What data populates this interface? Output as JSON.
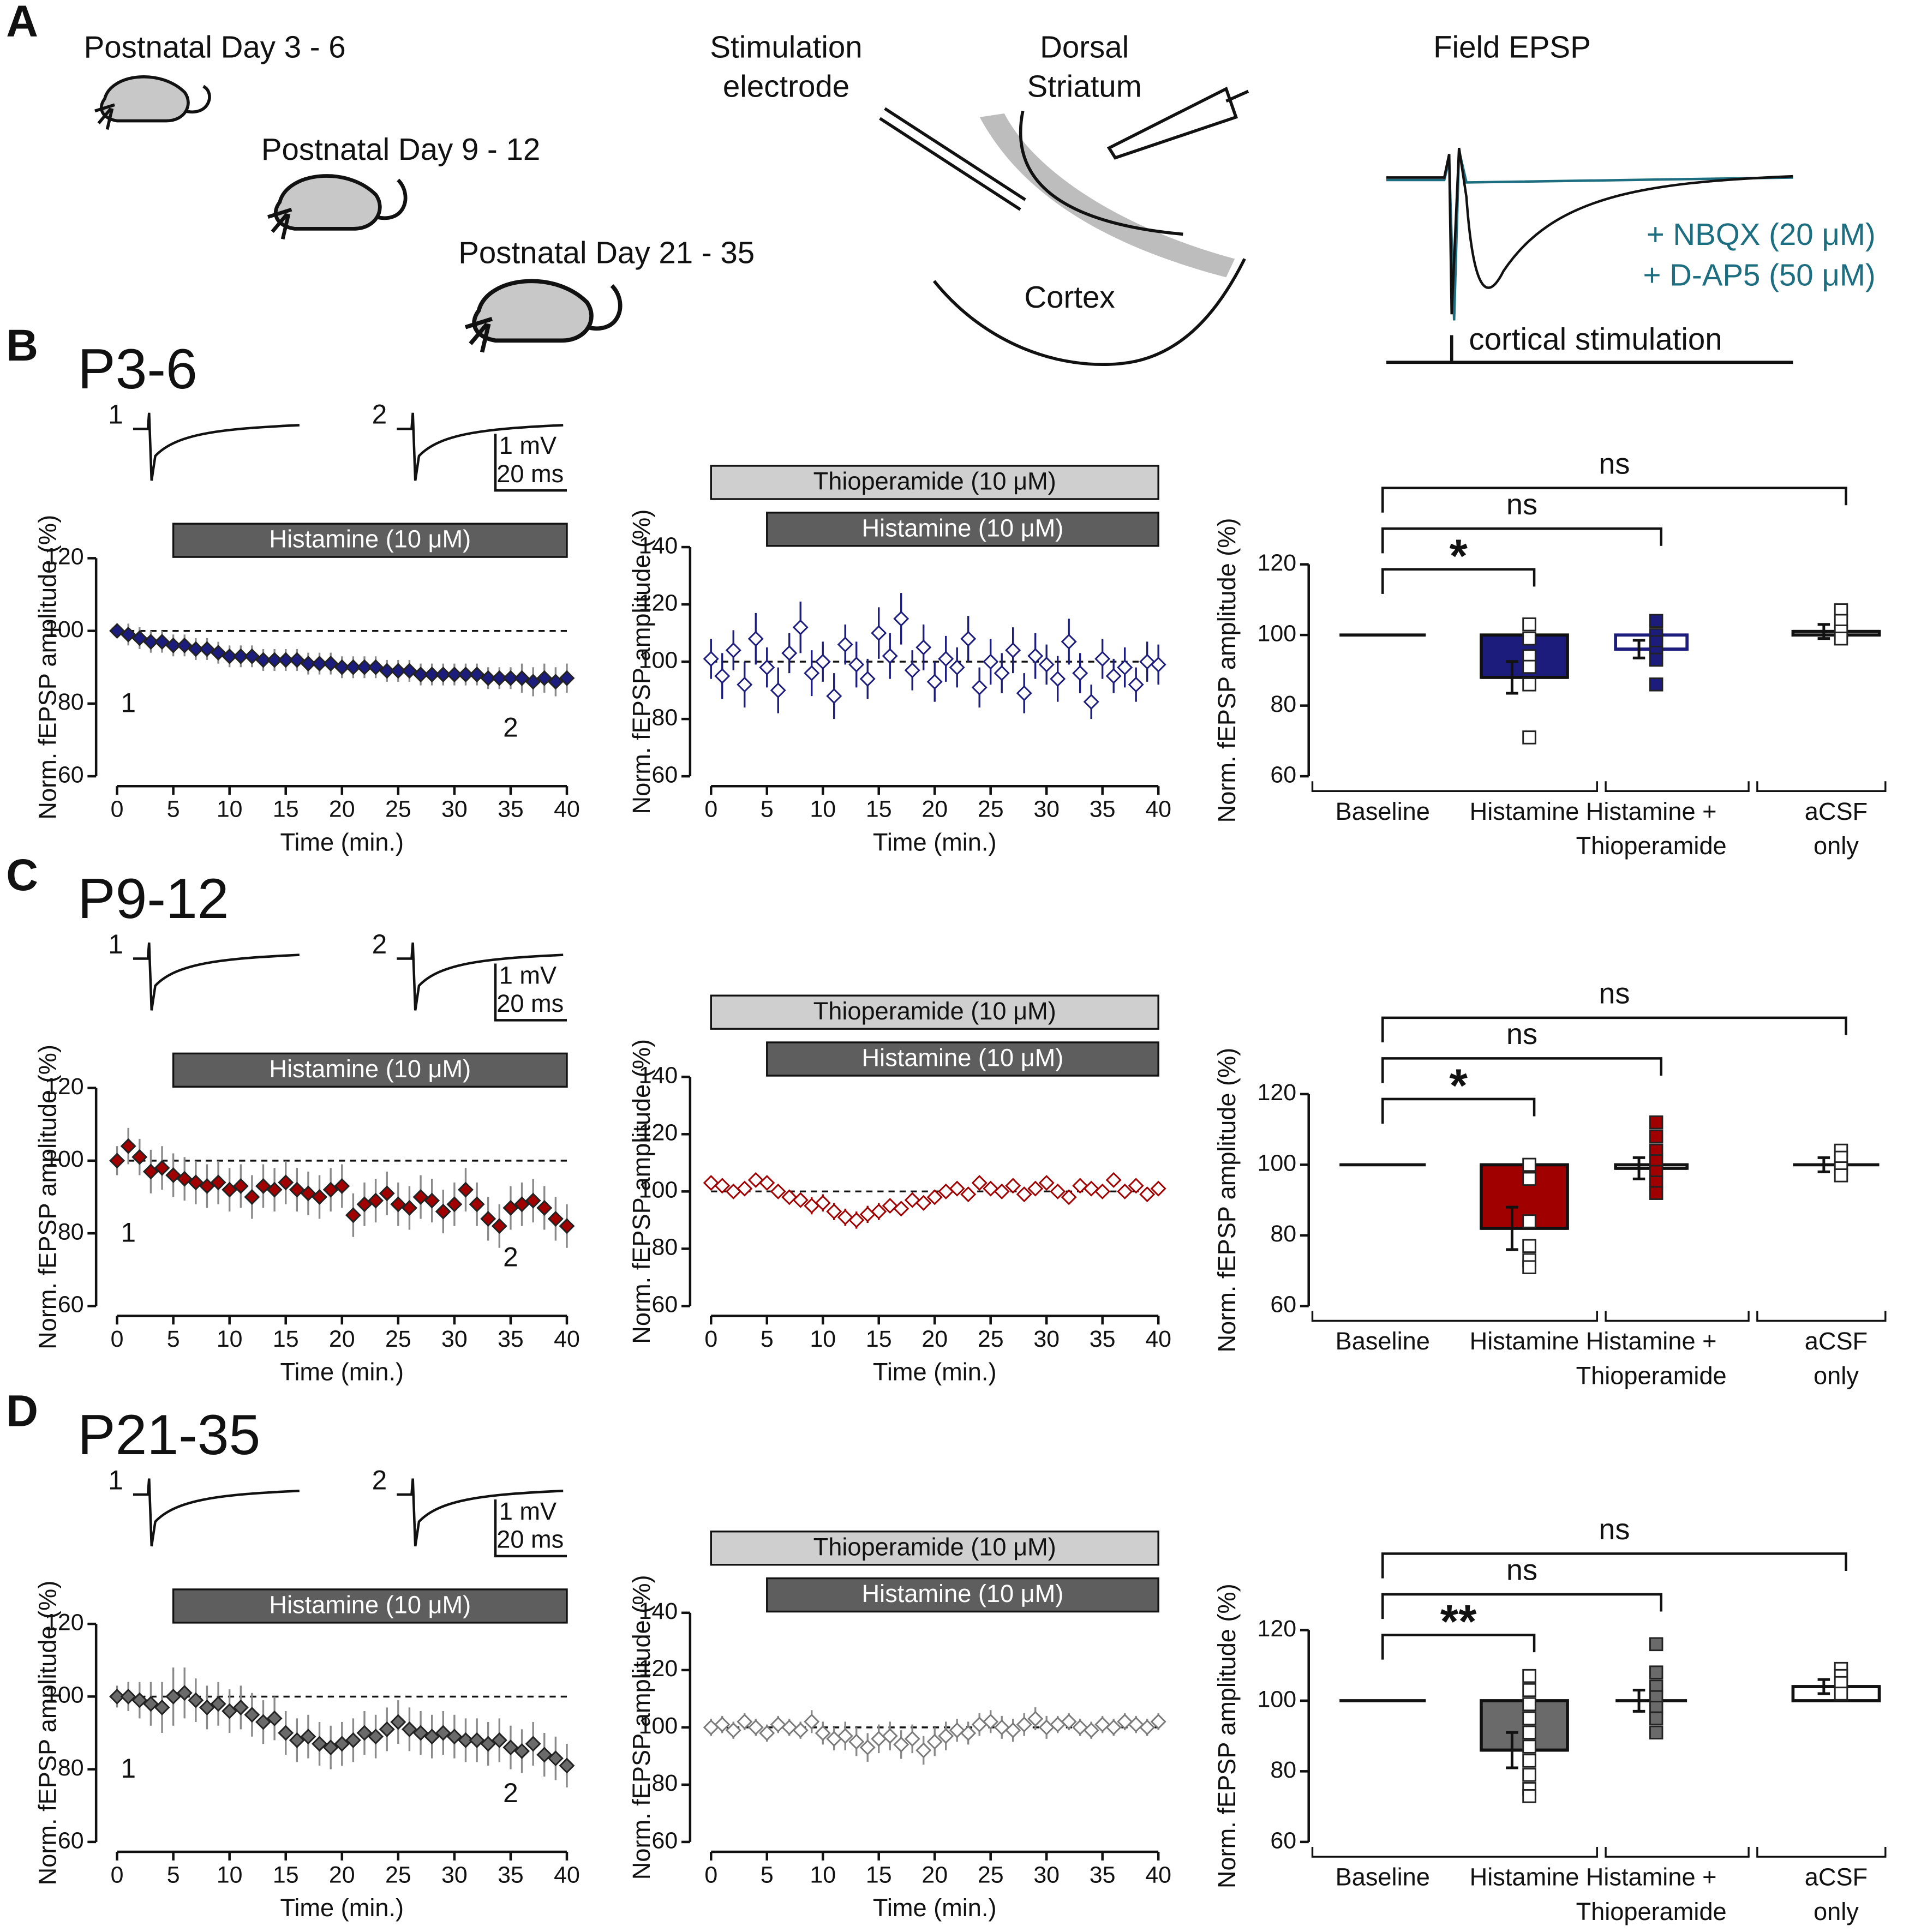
{
  "panel_labels": [
    "A",
    "B",
    "C",
    "D"
  ],
  "schematic": {
    "ages": [
      "Postnatal Day 3 - 6",
      "Postnatal Day 9 - 12",
      "Postnatal Day 21 - 35"
    ],
    "stimulation": [
      "Stimulation",
      "electrode"
    ],
    "region": [
      "Dorsal",
      "Striatum"
    ],
    "cortex": "Cortex",
    "epsp_title": "Field EPSP",
    "drugs": [
      "+ NBQX (20 μM)",
      "+ D-AP5 (50 μM)"
    ],
    "stim_note": "cortical stimulation"
  },
  "rows": [
    {
      "title": "P3-6",
      "trace_labels": [
        "1",
        "2"
      ],
      "scale_labels": [
        "1 mV",
        "20 ms"
      ]
    },
    {
      "title": "P9-12",
      "trace_labels": [
        "1",
        "2"
      ],
      "scale_labels": [
        "1 mV",
        "20 ms"
      ]
    },
    {
      "title": "P21-35",
      "trace_labels": [
        "1",
        "2"
      ],
      "scale_labels": [
        "1 mV",
        "20 ms"
      ]
    }
  ],
  "chart_data": [
    {
      "type": "scatter",
      "xlabel": "Time (min.)",
      "ylabel": "Norm. fEPSP amplitude (%)",
      "x": [
        0,
        1,
        2,
        3,
        4,
        5,
        6,
        7,
        8,
        9,
        10,
        11,
        12,
        13,
        14,
        15,
        16,
        17,
        18,
        19,
        20,
        21,
        22,
        23,
        24,
        25,
        26,
        27,
        28,
        29,
        30,
        31,
        32,
        33,
        34,
        35,
        36,
        37,
        38,
        39,
        40
      ],
      "values": [
        100,
        99,
        98,
        97,
        97,
        96,
        96,
        95,
        95,
        94,
        93,
        93,
        93,
        92,
        92,
        92,
        92,
        91,
        91,
        91,
        90,
        90,
        90,
        90,
        89,
        89,
        89,
        88,
        88,
        88,
        88,
        88,
        88,
        87,
        87,
        87,
        87,
        86,
        87,
        86,
        87
      ],
      "errors": [
        2,
        3,
        3,
        3,
        3,
        3,
        3,
        3,
        3,
        3,
        3,
        3,
        3,
        3,
        3,
        3,
        3,
        3,
        3,
        3,
        3,
        3,
        3,
        3,
        3,
        3,
        3,
        3,
        3,
        3,
        3,
        3,
        3,
        3,
        3,
        3,
        4,
        4,
        4,
        4,
        4
      ],
      "color": "#1c1c7c",
      "marker_face": "filled",
      "errorbar_color": "#8a8a8a",
      "xlim": [
        0,
        40
      ],
      "xticks": [
        0,
        5,
        10,
        15,
        20,
        25,
        30,
        35,
        40
      ],
      "ylim": [
        60,
        120
      ],
      "yticks": [
        60,
        80,
        100,
        120
      ],
      "reference_line": 100,
      "drug_bars": [
        {
          "label": "Histamine (10 μM)",
          "start": 5,
          "end": 40,
          "color": "#5e5e5e"
        }
      ]
    },
    {
      "type": "scatter",
      "xlabel": "Time (min.)",
      "ylabel": "Norm. fEPSP amplitude (%)",
      "x": [
        0,
        1,
        2,
        3,
        4,
        5,
        6,
        7,
        8,
        9,
        10,
        11,
        12,
        13,
        14,
        15,
        16,
        17,
        18,
        19,
        20,
        21,
        22,
        23,
        24,
        25,
        26,
        27,
        28,
        29,
        30,
        31,
        32,
        33,
        34,
        35,
        36,
        37,
        38,
        39,
        40
      ],
      "values": [
        101,
        95,
        104,
        92,
        108,
        98,
        90,
        103,
        112,
        96,
        100,
        88,
        106,
        99,
        94,
        110,
        102,
        115,
        97,
        105,
        93,
        101,
        98,
        108,
        91,
        100,
        96,
        104,
        89,
        102,
        99,
        94,
        107,
        96,
        86,
        101,
        95,
        98,
        92,
        100,
        99
      ],
      "errors": [
        7,
        8,
        7,
        8,
        9,
        7,
        8,
        7,
        9,
        8,
        7,
        8,
        7,
        8,
        7,
        9,
        8,
        9,
        7,
        8,
        7,
        8,
        7,
        8,
        7,
        8,
        7,
        8,
        7,
        8,
        7,
        8,
        8,
        7,
        6,
        7,
        6,
        7,
        6,
        7,
        7
      ],
      "color": "#1c1c7c",
      "marker_face": "open",
      "errorbar_color": "#1c1c7c",
      "xlim": [
        0,
        40
      ],
      "xticks": [
        0,
        5,
        10,
        15,
        20,
        25,
        30,
        35,
        40
      ],
      "ylim": [
        60,
        140
      ],
      "yticks": [
        60,
        80,
        100,
        120,
        140
      ],
      "reference_line": 100,
      "drug_bars": [
        {
          "label": "Thioperamide (10 μM)",
          "start": 0,
          "end": 40,
          "color": "#cfcfcf"
        },
        {
          "label": "Histamine (10 μM)",
          "start": 5,
          "end": 40,
          "color": "#5e5e5e"
        }
      ]
    },
    {
      "type": "bar",
      "ylabel": "Norm. fEPSP amplitude (%)",
      "categories": [
        "Baseline",
        "Histamine",
        "Histamine + Thioperamide",
        "aCSF only"
      ],
      "values": [
        100,
        88,
        96,
        101
      ],
      "errors": [
        0,
        4.5,
        2.5,
        2
      ],
      "points": [
        [],
        [
          103,
          99,
          94,
          91,
          86,
          71
        ],
        [
          104,
          100,
          98,
          95,
          93,
          86
        ],
        [
          107,
          104,
          101,
          99
        ]
      ],
      "fills": [
        "#ffffff",
        "#1c1c7c",
        "#ffffff",
        "#ffffff"
      ],
      "edgecolors": [
        "#111111",
        "#111111",
        "#1c1c7c",
        "#111111"
      ],
      "point_fills": [
        "#ffffff",
        "#ffffff",
        "#1c1c7c",
        "#ffffff"
      ],
      "ylim": [
        60,
        120
      ],
      "yticks": [
        60,
        80,
        100,
        120
      ],
      "bar_base": 100,
      "comparisons": [
        {
          "groups": [
            "Baseline",
            "Histamine"
          ],
          "label": "*"
        },
        {
          "groups": [
            "Baseline",
            "Histamine + Thioperamide"
          ],
          "label": "ns"
        },
        {
          "groups": [
            "Baseline",
            "aCSF only"
          ],
          "label": "ns"
        }
      ]
    },
    {
      "type": "scatter",
      "xlabel": "Time (min.)",
      "ylabel": "Norm. fEPSP amplitude (%)",
      "x": [
        0,
        1,
        2,
        3,
        4,
        5,
        6,
        7,
        8,
        9,
        10,
        11,
        12,
        13,
        14,
        15,
        16,
        17,
        18,
        19,
        20,
        21,
        22,
        23,
        24,
        25,
        26,
        27,
        28,
        29,
        30,
        31,
        32,
        33,
        34,
        35,
        36,
        37,
        38,
        39,
        40
      ],
      "values": [
        100,
        104,
        101,
        97,
        98,
        96,
        95,
        94,
        93,
        94,
        92,
        93,
        90,
        93,
        92,
        94,
        92,
        91,
        90,
        92,
        93,
        85,
        88,
        89,
        91,
        88,
        87,
        90,
        89,
        86,
        88,
        92,
        88,
        84,
        82,
        87,
        88,
        89,
        87,
        84,
        82
      ],
      "errors": [
        4,
        5,
        5,
        6,
        6,
        6,
        6,
        6,
        6,
        6,
        6,
        6,
        6,
        6,
        6,
        6,
        6,
        6,
        6,
        6,
        6,
        6,
        6,
        6,
        6,
        6,
        6,
        6,
        6,
        6,
        6,
        6,
        6,
        6,
        6,
        6,
        6,
        6,
        6,
        6,
        6
      ],
      "color": "#a00000",
      "marker_face": "filled",
      "errorbar_color": "#8a8a8a",
      "xlim": [
        0,
        40
      ],
      "xticks": [
        0,
        5,
        10,
        15,
        20,
        25,
        30,
        35,
        40
      ],
      "ylim": [
        60,
        120
      ],
      "yticks": [
        60,
        80,
        100,
        120
      ],
      "reference_line": 100,
      "drug_bars": [
        {
          "label": "Histamine (10 μM)",
          "start": 5,
          "end": 40,
          "color": "#5e5e5e"
        }
      ]
    },
    {
      "type": "scatter",
      "xlabel": "Time (min.)",
      "ylabel": "Norm. fEPSP amplitude (%)",
      "x": [
        0,
        1,
        2,
        3,
        4,
        5,
        6,
        7,
        8,
        9,
        10,
        11,
        12,
        13,
        14,
        15,
        16,
        17,
        18,
        19,
        20,
        21,
        22,
        23,
        24,
        25,
        26,
        27,
        28,
        29,
        30,
        31,
        32,
        33,
        34,
        35,
        36,
        37,
        38,
        39,
        40
      ],
      "values": [
        103,
        102,
        100,
        101,
        104,
        103,
        100,
        98,
        97,
        95,
        96,
        93,
        91,
        90,
        92,
        93,
        95,
        94,
        97,
        96,
        98,
        100,
        101,
        99,
        103,
        101,
        100,
        102,
        99,
        101,
        103,
        100,
        98,
        102,
        101,
        100,
        104,
        100,
        102,
        99,
        101
      ],
      "errors": [
        2,
        2,
        2,
        2,
        2,
        2,
        2,
        2,
        2,
        3,
        3,
        3,
        3,
        3,
        3,
        3,
        2,
        2,
        2,
        2,
        2,
        2,
        2,
        2,
        2,
        2,
        2,
        2,
        2,
        2,
        2,
        2,
        2,
        2,
        2,
        2,
        2,
        2,
        2,
        2,
        2
      ],
      "color": "#a00000",
      "marker_face": "open",
      "errorbar_color": "#a00000",
      "xlim": [
        0,
        40
      ],
      "xticks": [
        0,
        5,
        10,
        15,
        20,
        25,
        30,
        35,
        40
      ],
      "ylim": [
        60,
        140
      ],
      "yticks": [
        60,
        80,
        100,
        120,
        140
      ],
      "reference_line": 100,
      "drug_bars": [
        {
          "label": "Thioperamide (10 μM)",
          "start": 0,
          "end": 40,
          "color": "#cfcfcf"
        },
        {
          "label": "Histamine (10 μM)",
          "start": 5,
          "end": 40,
          "color": "#5e5e5e"
        }
      ]
    },
    {
      "type": "bar",
      "ylabel": "Norm. fEPSP amplitude (%)",
      "categories": [
        "Baseline",
        "Histamine",
        "Histamine + Thioperamide",
        "aCSF only"
      ],
      "values": [
        100,
        82,
        99,
        100
      ],
      "errors": [
        0,
        6,
        3,
        2
      ],
      "points": [
        [],
        [
          100,
          96,
          84,
          77,
          73,
          71
        ],
        [
          112,
          108,
          104,
          101,
          98,
          95,
          92
        ],
        [
          104,
          102,
          99,
          97
        ]
      ],
      "fills": [
        "#ffffff",
        "#a00000",
        "#ffffff",
        "#ffffff"
      ],
      "edgecolors": [
        "#111111",
        "#111111",
        "#111111",
        "#111111"
      ],
      "point_fills": [
        "#ffffff",
        "#ffffff",
        "#a00000",
        "#ffffff"
      ],
      "ylim": [
        60,
        120
      ],
      "yticks": [
        60,
        80,
        100,
        120
      ],
      "bar_base": 100,
      "comparisons": [
        {
          "groups": [
            "Baseline",
            "Histamine"
          ],
          "label": "*"
        },
        {
          "groups": [
            "Baseline",
            "Histamine + Thioperamide"
          ],
          "label": "ns"
        },
        {
          "groups": [
            "Baseline",
            "aCSF only"
          ],
          "label": "ns"
        }
      ]
    },
    {
      "type": "scatter",
      "xlabel": "Time (min.)",
      "ylabel": "Norm. fEPSP amplitude (%)",
      "x": [
        0,
        1,
        2,
        3,
        4,
        5,
        6,
        7,
        8,
        9,
        10,
        11,
        12,
        13,
        14,
        15,
        16,
        17,
        18,
        19,
        20,
        21,
        22,
        23,
        24,
        25,
        26,
        27,
        28,
        29,
        30,
        31,
        32,
        33,
        34,
        35,
        36,
        37,
        38,
        39,
        40
      ],
      "values": [
        100,
        100,
        99,
        98,
        97,
        100,
        101,
        99,
        97,
        98,
        96,
        97,
        95,
        93,
        94,
        90,
        88,
        89,
        87,
        86,
        87,
        88,
        90,
        89,
        91,
        93,
        91,
        90,
        89,
        90,
        89,
        88,
        88,
        87,
        88,
        86,
        85,
        87,
        84,
        83,
        81
      ],
      "errors": [
        3,
        4,
        5,
        6,
        7,
        8,
        7,
        6,
        6,
        6,
        6,
        6,
        6,
        6,
        6,
        6,
        6,
        6,
        6,
        6,
        6,
        6,
        6,
        6,
        6,
        6,
        6,
        6,
        6,
        6,
        6,
        6,
        6,
        6,
        6,
        6,
        6,
        6,
        6,
        6,
        6
      ],
      "color": "#6a6a6a",
      "marker_face": "filled",
      "errorbar_color": "#8a8a8a",
      "xlim": [
        0,
        40
      ],
      "xticks": [
        0,
        5,
        10,
        15,
        20,
        25,
        30,
        35,
        40
      ],
      "ylim": [
        60,
        120
      ],
      "yticks": [
        60,
        80,
        100,
        120
      ],
      "reference_line": 100,
      "drug_bars": [
        {
          "label": "Histamine (10 μM)",
          "start": 5,
          "end": 40,
          "color": "#5e5e5e"
        }
      ]
    },
    {
      "type": "scatter",
      "xlabel": "Time (min.)",
      "ylabel": "Norm. fEPSP amplitude (%)",
      "x": [
        0,
        1,
        2,
        3,
        4,
        5,
        6,
        7,
        8,
        9,
        10,
        11,
        12,
        13,
        14,
        15,
        16,
        17,
        18,
        19,
        20,
        21,
        22,
        23,
        24,
        25,
        26,
        27,
        28,
        29,
        30,
        31,
        32,
        33,
        34,
        35,
        36,
        37,
        38,
        39,
        40
      ],
      "values": [
        100,
        101,
        99,
        102,
        100,
        98,
        101,
        100,
        99,
        102,
        98,
        96,
        97,
        95,
        93,
        96,
        97,
        94,
        96,
        92,
        95,
        97,
        99,
        98,
        101,
        102,
        100,
        99,
        101,
        103,
        100,
        101,
        102,
        100,
        99,
        101,
        100,
        102,
        101,
        100,
        102
      ],
      "errors": [
        3,
        3,
        3,
        3,
        3,
        3,
        3,
        3,
        3,
        4,
        4,
        4,
        5,
        5,
        5,
        5,
        5,
        5,
        5,
        5,
        5,
        5,
        4,
        4,
        4,
        4,
        4,
        4,
        4,
        4,
        4,
        3,
        3,
        3,
        3,
        3,
        3,
        3,
        3,
        3,
        3
      ],
      "color": "#7a7a7a",
      "marker_face": "open",
      "errorbar_color": "#8a8a8a",
      "xlim": [
        0,
        40
      ],
      "xticks": [
        0,
        5,
        10,
        15,
        20,
        25,
        30,
        35,
        40
      ],
      "ylim": [
        60,
        140
      ],
      "yticks": [
        60,
        80,
        100,
        120,
        140
      ],
      "reference_line": 100,
      "drug_bars": [
        {
          "label": "Thioperamide (10 μM)",
          "start": 0,
          "end": 40,
          "color": "#cfcfcf"
        },
        {
          "label": "Histamine (10 μM)",
          "start": 5,
          "end": 40,
          "color": "#5e5e5e"
        }
      ]
    },
    {
      "type": "bar",
      "ylabel": "Norm. fEPSP amplitude (%)",
      "categories": [
        "Baseline",
        "Histamine",
        "Histamine + Thioperamide",
        "aCSF only"
      ],
      "values": [
        100,
        86,
        100,
        104
      ],
      "errors": [
        0,
        5,
        3,
        2
      ],
      "points": [
        [],
        [
          107,
          103,
          99,
          95,
          91,
          87,
          83,
          79,
          75,
          73
        ],
        [
          116,
          108,
          104,
          101,
          98,
          95,
          91
        ],
        [
          109,
          107,
          105,
          102
        ]
      ],
      "fills": [
        "#ffffff",
        "#6a6a6a",
        "#ffffff",
        "#ffffff"
      ],
      "edgecolors": [
        "#111111",
        "#111111",
        "#111111",
        "#111111"
      ],
      "point_fills": [
        "#ffffff",
        "#ffffff",
        "#6a6a6a",
        "#ffffff"
      ],
      "ylim": [
        60,
        120
      ],
      "yticks": [
        60,
        80,
        100,
        120
      ],
      "bar_base": 100,
      "comparisons": [
        {
          "groups": [
            "Baseline",
            "Histamine"
          ],
          "label": "**"
        },
        {
          "groups": [
            "Baseline",
            "Histamine + Thioperamide"
          ],
          "label": "ns"
        },
        {
          "groups": [
            "Baseline",
            "aCSF only"
          ],
          "label": "ns"
        }
      ]
    }
  ]
}
